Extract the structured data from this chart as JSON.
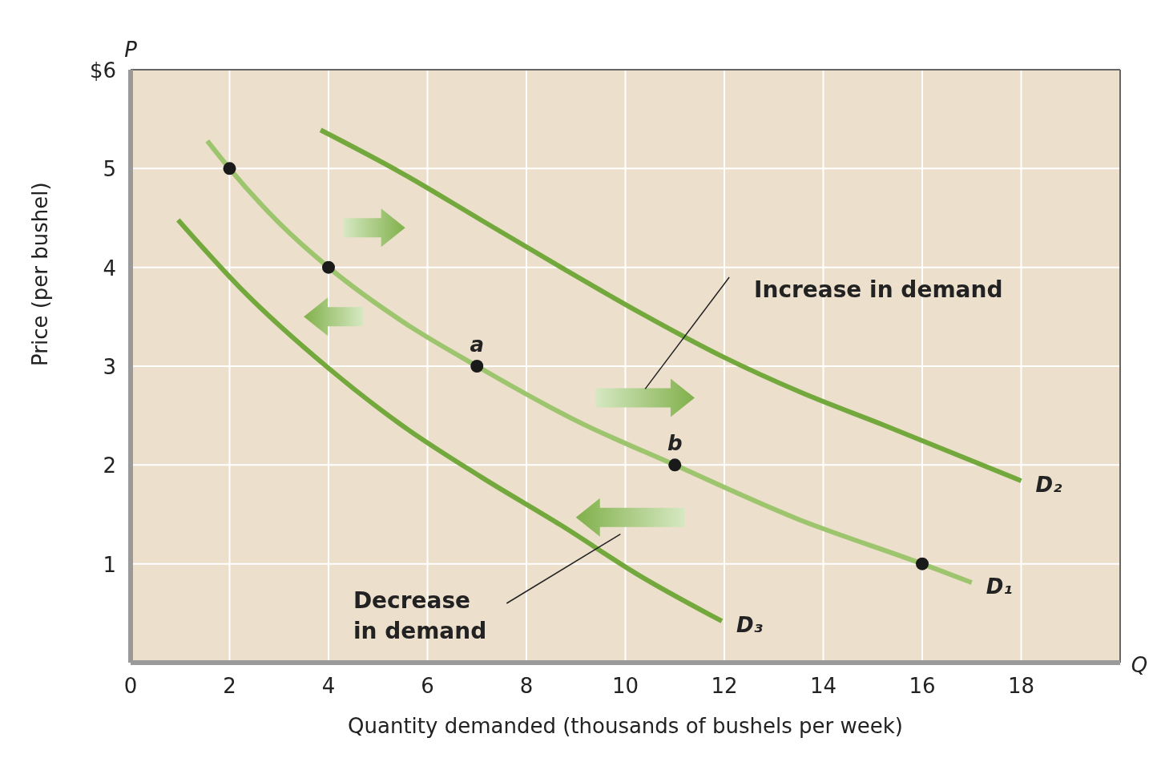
{
  "chart_data": {
    "type": "line",
    "xlabel": "Quantity demanded (thousands of bushels per week)",
    "ylabel": "Price (per bushel)",
    "xlim": [
      0,
      20
    ],
    "ylim": [
      0,
      6
    ],
    "xticks": [
      0,
      2,
      4,
      6,
      8,
      10,
      12,
      14,
      16,
      18
    ],
    "yticks": [
      1,
      2,
      3,
      4,
      5,
      {
        "value": 6,
        "label": "$6"
      }
    ],
    "grid": true,
    "series": [
      {
        "name": "D₁",
        "color": "#9dc56e",
        "x": [
          1.55,
          2,
          3,
          4,
          5.5,
          7,
          9,
          11,
          13.5,
          16,
          17
        ],
        "values": [
          5.28,
          5,
          4.45,
          4,
          3.45,
          3,
          2.45,
          2,
          1.45,
          1,
          0.81
        ]
      },
      {
        "name": "D₂",
        "color": "#72a83c",
        "x": [
          3.84,
          5.46,
          7.08,
          8.7,
          10.3,
          11.95,
          13.57,
          15.19,
          18
        ],
        "values": [
          5.39,
          4.96,
          4.48,
          4.0,
          3.54,
          3.1,
          2.73,
          2.41,
          1.84
        ]
      },
      {
        "name": "D₃",
        "color": "#72a83c",
        "x": [
          0.96,
          2.22,
          4,
          5.46,
          7.08,
          8.7,
          10.32,
          11.95
        ],
        "values": [
          4.48,
          3.79,
          2.98,
          2.41,
          1.88,
          1.39,
          0.87,
          0.42
        ]
      },
      {
        "type": "scatter",
        "color": "#1a1a1a",
        "marker": "circle",
        "x": [
          2,
          4,
          7,
          11,
          16
        ],
        "values": [
          5,
          4,
          3,
          2,
          1
        ]
      }
    ],
    "annotations": [
      "P",
      "Q",
      {
        "text": "a",
        "x": 7,
        "y": 3
      },
      {
        "text": "b",
        "x": 11,
        "y": 2
      },
      "Increase in demand",
      "Decrease in demand"
    ]
  }
}
